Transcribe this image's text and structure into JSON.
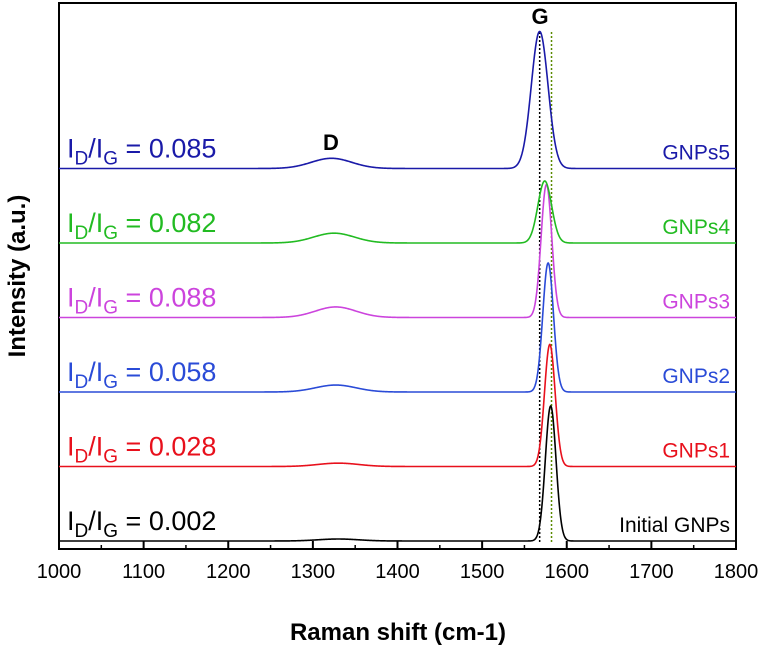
{
  "chart_data": {
    "type": "line",
    "xlabel": "Raman shift (cm-1)",
    "ylabel": "Intensity (a.u.)",
    "xlim": [
      1000,
      1800
    ],
    "x_ticks": [
      1000,
      1100,
      1200,
      1300,
      1400,
      1500,
      1600,
      1700,
      1800
    ],
    "y_ticks_shown": false,
    "grid": false,
    "legend": "none",
    "peak_labels": {
      "D": "D",
      "G": "G"
    },
    "reference_lines": [
      {
        "x": 1568,
        "style": "dotted",
        "color": "#000000"
      },
      {
        "x": 1582,
        "style": "dotted",
        "color": "#5a8a00"
      }
    ],
    "series": [
      {
        "name": "Initial GNPs",
        "color": "#000000",
        "ratio_prefix": "I",
        "ratio_sub_d": "D",
        "ratio_slash": "/I",
        "ratio_sub_g": "G",
        "ratio_value": " = 0.002",
        "d_peak_x": 1330,
        "d_peak_height": 0.002,
        "g_peak_x": 1581,
        "g_peak_height": 1.0,
        "g_width": 7
      },
      {
        "name": "GNPs1",
        "color": "#e8101c",
        "ratio_prefix": "I",
        "ratio_sub_d": "D",
        "ratio_slash": "/I",
        "ratio_sub_g": "G",
        "ratio_value": " = 0.028",
        "d_peak_x": 1330,
        "d_peak_height": 0.028,
        "g_peak_x": 1580,
        "g_peak_height": 1.0,
        "g_width": 7
      },
      {
        "name": "GNPs2",
        "color": "#2a4bd7",
        "ratio_prefix": "I",
        "ratio_sub_d": "D",
        "ratio_slash": "/I",
        "ratio_sub_g": "G",
        "ratio_value": " = 0.058",
        "d_peak_x": 1327,
        "d_peak_height": 0.058,
        "g_peak_x": 1578,
        "g_peak_height": 1.0,
        "g_width": 7
      },
      {
        "name": "GNPs3",
        "color": "#cc44dd",
        "ratio_prefix": "I",
        "ratio_sub_d": "D",
        "ratio_slash": "/I",
        "ratio_sub_g": "G",
        "ratio_value": " = 0.088",
        "d_peak_x": 1327,
        "d_peak_height": 0.088,
        "g_peak_x": 1576,
        "g_peak_height": 1.0,
        "g_width": 7
      },
      {
        "name": "GNPs4",
        "color": "#22bb22",
        "ratio_prefix": "I",
        "ratio_sub_d": "D",
        "ratio_slash": "/I",
        "ratio_sub_g": "G",
        "ratio_value": " = 0.082",
        "d_peak_x": 1325,
        "d_peak_height": 0.082,
        "g_peak_x": 1574,
        "g_peak_height": 1.0,
        "g_width": 9
      },
      {
        "name": "GNPs5",
        "color": "#1a1aa8",
        "ratio_prefix": "I",
        "ratio_sub_d": "D",
        "ratio_slash": "/I",
        "ratio_sub_g": "G",
        "ratio_value": " = 0.085",
        "d_peak_x": 1322,
        "d_peak_height": 0.085,
        "g_peak_x": 1568,
        "g_peak_height": 1.0,
        "g_width": 11
      }
    ]
  }
}
